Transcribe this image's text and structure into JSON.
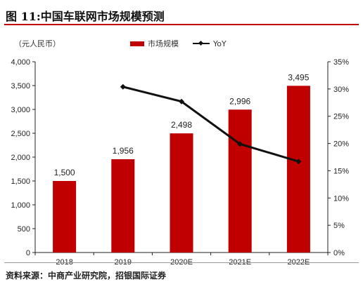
{
  "title": "图 11:中国车联网市场规模预测",
  "unit_label": "（元人民币）",
  "legend": {
    "bar": "市场规模",
    "line": "YoY"
  },
  "source": "资料来源：中商产业研究院，招银国际证券",
  "colors": {
    "bar": "#c00000",
    "line": "#111111",
    "title_rule": "#c00000"
  },
  "chart_data": {
    "type": "bar",
    "categories": [
      "2018",
      "2019",
      "2020E",
      "2021E",
      "2022E"
    ],
    "series": [
      {
        "name": "市场规模",
        "type": "bar",
        "axis": "left",
        "values": [
          1500,
          1956,
          2498,
          2996,
          3495
        ],
        "labels": [
          "1,500",
          "1,956",
          "2,498",
          "2,996",
          "3,495"
        ]
      },
      {
        "name": "YoY",
        "type": "line",
        "axis": "right",
        "values": [
          null,
          30.4,
          27.7,
          19.9,
          16.7
        ]
      }
    ],
    "ylim_left": [
      0,
      4000
    ],
    "yticks_left": [
      "0",
      "500",
      "1,000",
      "1,500",
      "2,000",
      "2,500",
      "3,000",
      "3,500",
      "4,000"
    ],
    "ylim_right": [
      0,
      35
    ],
    "yticks_right": [
      "0%",
      "5%",
      "10%",
      "15%",
      "20%",
      "25%",
      "30%",
      "35%"
    ],
    "grid": false,
    "legend_position": "top"
  }
}
